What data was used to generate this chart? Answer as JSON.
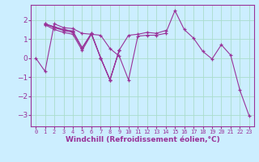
{
  "background_color": "#cceeff",
  "line_color": "#993399",
  "grid_color": "#aaddcc",
  "xlabel": "Windchill (Refroidissement éolien,°C)",
  "xlabel_fontsize": 6.5,
  "xtick_fontsize": 5.0,
  "ytick_fontsize": 6.5,
  "ylim": [
    -3.6,
    2.8
  ],
  "xlim": [
    -0.5,
    23.5
  ],
  "yticks": [
    -3,
    -2,
    -1,
    0,
    1,
    2
  ],
  "series": [
    [
      0.0,
      -0.7,
      1.8,
      1.6,
      1.55,
      1.3,
      1.25,
      1.2,
      0.5,
      0.1,
      -1.15,
      1.15,
      1.2,
      1.2,
      1.3,
      2.5,
      1.5,
      1.05,
      0.35,
      -0.05,
      0.7,
      0.15,
      -1.7,
      -3.05
    ],
    [
      null,
      1.8,
      1.6,
      1.45,
      1.35,
      0.5,
      1.3,
      0.0,
      -1.15,
      0.4,
      null,
      null,
      null,
      null,
      null,
      null,
      null,
      null,
      null,
      null,
      null,
      null,
      null,
      null
    ],
    [
      null,
      1.75,
      1.5,
      1.35,
      1.25,
      0.4,
      1.25,
      0.0,
      -1.15,
      0.4,
      null,
      null,
      null,
      null,
      null,
      null,
      null,
      null,
      null,
      null,
      null,
      null,
      null,
      null
    ],
    [
      null,
      1.8,
      1.65,
      1.5,
      1.42,
      0.55,
      1.3,
      0.0,
      -1.15,
      0.42,
      1.2,
      1.25,
      1.35,
      1.3,
      1.45,
      null,
      null,
      null,
      null,
      null,
      null,
      null,
      null,
      null
    ],
    [
      null,
      1.78,
      1.62,
      1.5,
      1.4,
      null,
      null,
      null,
      null,
      null,
      null,
      null,
      null,
      null,
      null,
      null,
      null,
      null,
      null,
      null,
      null,
      null,
      null,
      null
    ]
  ]
}
